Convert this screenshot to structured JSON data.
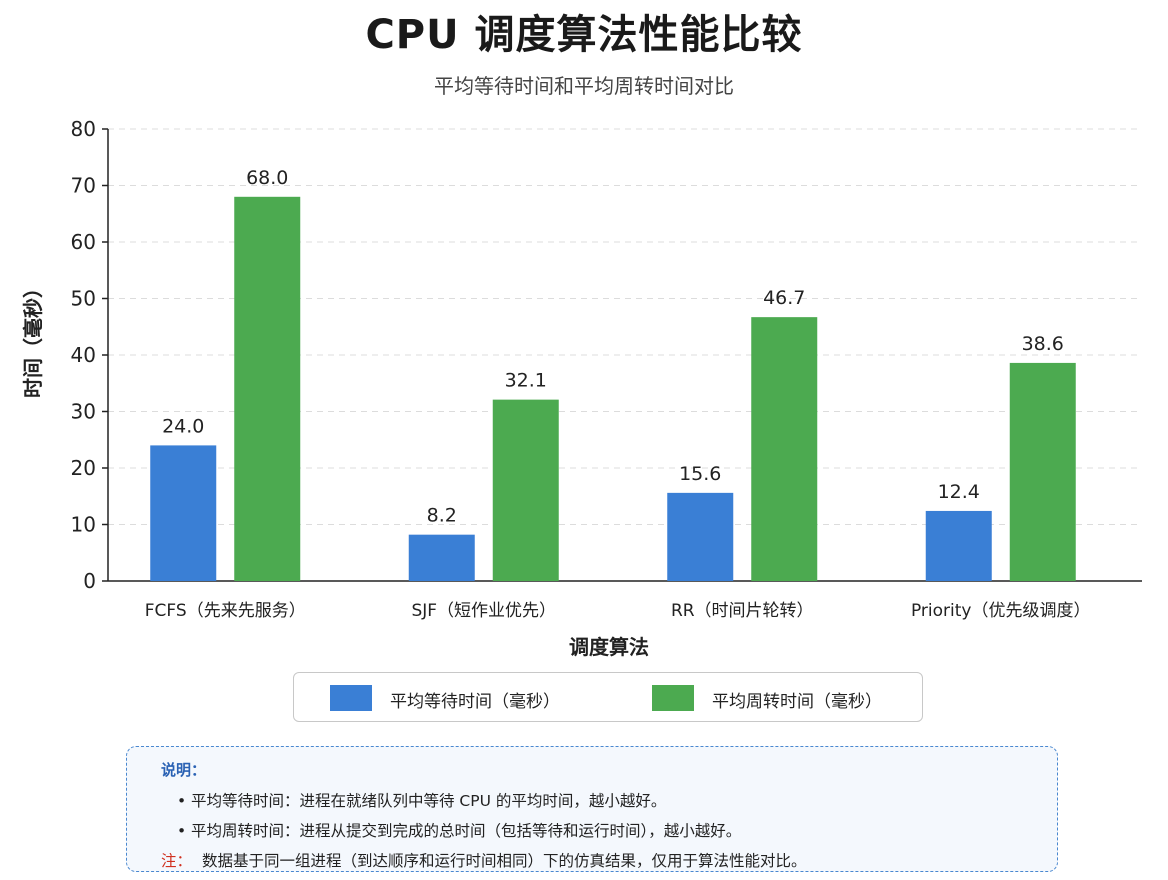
{
  "header": {
    "title": "CPU 调度算法性能比较",
    "subtitle": "平均等待时间和平均周转时间对比"
  },
  "chart_data": {
    "type": "bar",
    "xlabel": "调度算法",
    "ylabel": "时间（毫秒）",
    "ylim": [
      0,
      80
    ],
    "yticks": [
      0,
      10,
      20,
      30,
      40,
      50,
      60,
      70,
      80
    ],
    "grid": true,
    "legend_position": "bottom",
    "categories": [
      "FCFS（先来先服务）",
      "SJF（短作业优先）",
      "RR（时间片轮转）",
      "Priority（优先级调度）"
    ],
    "series": [
      {
        "name": "平均等待时间（毫秒）",
        "values": [
          24.0,
          8.2,
          15.6,
          12.4
        ],
        "color": "#3a7fd5"
      },
      {
        "name": "平均周转时间（毫秒）",
        "values": [
          68.0,
          32.1,
          46.7,
          38.6
        ],
        "color": "#4caa50"
      }
    ]
  },
  "notes": {
    "title": "说明：",
    "items": [
      "平均等待时间：进程在就绪队列中等待 CPU 的平均时间，越小越好。",
      "平均周转时间：进程从提交到完成的总时间（包括等待和运行时间），越小越好。"
    ],
    "footer_label": "注：",
    "footer_text": "数据基于同一组进程（到达顺序和运行时间相同）下的仿真结果，仅用于算法性能对比。"
  },
  "colors": {
    "accent": "#2a62b4",
    "warn": "#d0301f"
  }
}
